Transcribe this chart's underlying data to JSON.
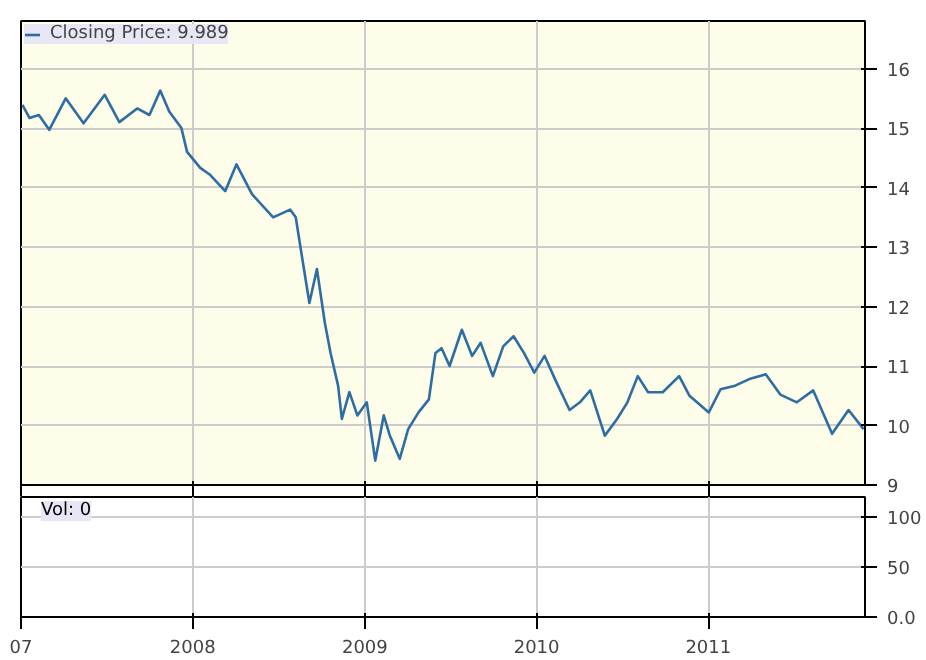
{
  "chart_data": [
    {
      "type": "line",
      "xlim": [
        "2007-01-01",
        "2011-11-30"
      ],
      "ylim": [
        9,
        16.8
      ],
      "xticks": [
        {
          "value": "2007-01-01",
          "label": null
        },
        {
          "value": "2008-01-01",
          "label": null
        },
        {
          "value": "2009-01-01",
          "label": null
        },
        {
          "value": "2010-01-01",
          "label": null
        },
        {
          "value": "2011-01-01",
          "label": null
        }
      ],
      "yticks": [
        9,
        10,
        11,
        12,
        13,
        14,
        15,
        16
      ],
      "grid": true,
      "legend": "top left",
      "tick_labels": "y",
      "series": [
        {
          "name": "Closing Price: 9.989",
          "color": "#2e6da4",
          "x": [
            "2007-01-04",
            "2007-01-19",
            "2007-02-08",
            "2007-03-02",
            "2007-04-06",
            "2007-05-14",
            "2007-06-28",
            "2007-07-29",
            "2007-09-05",
            "2007-10-01",
            "2007-10-24",
            "2007-11-12",
            "2007-12-08",
            "2007-12-20",
            "2008-01-17",
            "2008-02-06",
            "2008-03-10",
            "2008-04-03",
            "2008-05-06",
            "2008-06-20",
            "2008-07-26",
            "2008-08-07",
            "2008-08-19",
            "2008-09-05",
            "2008-09-21",
            "2008-10-08",
            "2008-10-20",
            "2008-11-05",
            "2008-11-13",
            "2008-11-29",
            "2008-12-16",
            "2009-01-05",
            "2009-01-23",
            "2009-02-10",
            "2009-02-23",
            "2009-03-16",
            "2009-04-03",
            "2009-04-25",
            "2009-05-17",
            "2009-05-31",
            "2009-06-13",
            "2009-06-30",
            "2009-07-26",
            "2009-08-17",
            "2009-09-04",
            "2009-09-30",
            "2009-10-22",
            "2009-11-13",
            "2009-12-05",
            "2009-12-27",
            "2010-01-18",
            "2010-02-09",
            "2010-03-12",
            "2010-04-03",
            "2010-04-25",
            "2010-05-26",
            "2010-06-21",
            "2010-07-13",
            "2010-08-04",
            "2010-08-26",
            "2010-09-26",
            "2010-10-31",
            "2010-11-22",
            "2011-01-02",
            "2011-01-27",
            "2011-02-27",
            "2011-03-29",
            "2011-05-03",
            "2011-06-03",
            "2011-07-08",
            "2011-08-12",
            "2011-09-21",
            "2011-10-26",
            "2011-11-27"
          ],
          "values": [
            15.39,
            15.17,
            15.22,
            14.97,
            15.5,
            15.08,
            15.56,
            15.1,
            15.33,
            15.22,
            15.63,
            15.28,
            15.0,
            14.6,
            14.33,
            14.22,
            13.94,
            14.39,
            13.89,
            13.5,
            13.63,
            13.5,
            12.9,
            12.06,
            12.63,
            11.72,
            11.22,
            10.67,
            10.11,
            10.56,
            10.17,
            10.39,
            9.41,
            10.17,
            9.83,
            9.44,
            9.94,
            10.22,
            10.44,
            11.22,
            11.3,
            11.0,
            11.61,
            11.17,
            11.39,
            10.83,
            11.33,
            11.5,
            11.22,
            10.89,
            11.17,
            10.78,
            10.26,
            10.39,
            10.59,
            9.83,
            10.11,
            10.39,
            10.83,
            10.56,
            10.56,
            10.83,
            10.5,
            10.22,
            10.61,
            10.67,
            10.78,
            10.86,
            10.52,
            10.39,
            10.59,
            9.86,
            10.26,
            9.94
          ]
        }
      ]
    },
    {
      "type": "bar",
      "title": "Vol: 0",
      "xlim": [
        "2007-01-01",
        "2011-11-30"
      ],
      "ylim": [
        0,
        120
      ],
      "xticks": [
        {
          "value": "2007-01-01",
          "label": "07"
        },
        {
          "value": "2008-01-01",
          "label": "2008"
        },
        {
          "value": "2009-01-01",
          "label": "2009"
        },
        {
          "value": "2010-01-01",
          "label": "2010"
        },
        {
          "value": "2011-01-01",
          "label": "2011"
        }
      ],
      "yticks": [
        {
          "value": 0,
          "label": "0.0"
        },
        50,
        100
      ],
      "grid": true
    }
  ]
}
